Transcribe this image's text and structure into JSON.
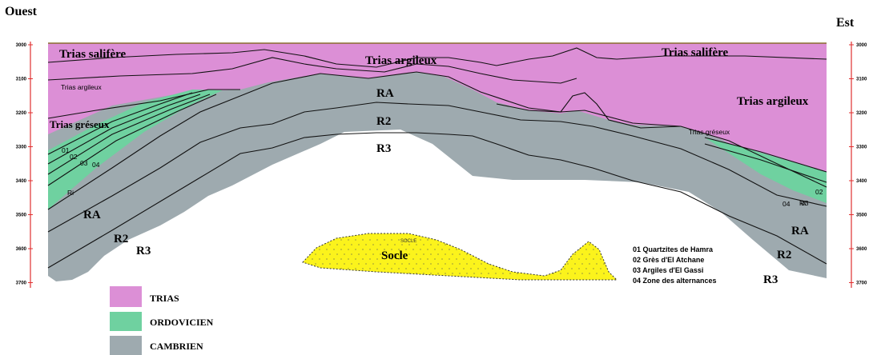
{
  "sides": {
    "west": "Ouest",
    "east": "Est"
  },
  "depth_ticks": [
    "3000",
    "3100",
    "3200",
    "3300",
    "3400",
    "3500",
    "3600",
    "3700"
  ],
  "labels": {
    "trias_salifere_w": "Trias salifère",
    "trias_argileux_top": "Trias argileux",
    "trias_salifere_e": "Trias salifère",
    "trias_argileux_w": "Trias argileux",
    "trias_argileux_e": "Trias argileux",
    "trias_greseux_w": "Trias gréseux",
    "trias_greseux_e": "Trias gréseux",
    "ra_center": "RA",
    "r2_center": "R2",
    "r3_center": "R3",
    "ra_west": "RA",
    "r2_west": "R2",
    "r3_west": "R3",
    "ra_east": "RA",
    "r2_east": "R2",
    "r3_east": "R3",
    "ri_west": "Ri",
    "ri_east": "Ri",
    "socle": "Socle",
    "socle_small": "SOCLE",
    "n01_w": "01",
    "n02_w": "02",
    "n03_w": "03",
    "n04_w": "04",
    "n02_e": "02",
    "n03_e": "03",
    "n04_e": "04"
  },
  "key": [
    "01 Quartzites de Hamra",
    "02 Grès d'El Atchane",
    "03 Argiles d'El Gassi",
    "04 Zone des alternances"
  ],
  "legend": [
    {
      "label": "TRIAS",
      "color": "#dc8fd6"
    },
    {
      "label": "ORDOVICIEN",
      "color": "#6fd1a0"
    },
    {
      "label": "CAMBRIEN",
      "color": "#9eaaaf"
    }
  ],
  "colors": {
    "trias": "#dc8fd6",
    "ordovicien": "#6fd1a0",
    "cambrien": "#9eaaaf",
    "socle": "#fbf31c",
    "scale": "#e03030"
  }
}
